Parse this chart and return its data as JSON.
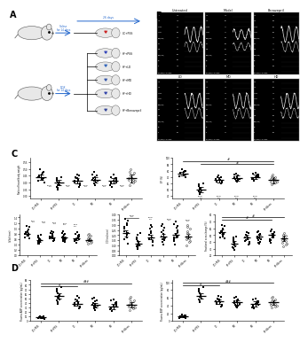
{
  "group_labels_short": [
    "UC+PSS",
    "HF+PSS",
    "LD",
    "MD",
    "HD",
    "HF+Bena"
  ],
  "ratio_hw_bw": {
    "means": [
      0.44,
      0.4,
      0.41,
      0.42,
      0.41,
      0.43
    ],
    "sems": [
      0.02,
      0.02,
      0.02,
      0.02,
      0.02,
      0.03
    ],
    "scatter": [
      [
        0.5,
        0.48,
        0.47,
        0.46,
        0.45,
        0.44,
        0.44,
        0.43,
        0.43,
        0.42,
        0.41,
        0.4
      ],
      [
        0.44,
        0.43,
        0.42,
        0.41,
        0.4,
        0.4,
        0.39,
        0.38,
        0.38,
        0.37,
        0.36,
        0.35
      ],
      [
        0.46,
        0.45,
        0.44,
        0.43,
        0.42,
        0.41,
        0.41,
        0.4,
        0.4,
        0.39,
        0.38,
        0.37
      ],
      [
        0.48,
        0.46,
        0.45,
        0.44,
        0.43,
        0.42,
        0.42,
        0.41,
        0.41,
        0.4,
        0.39,
        0.38
      ],
      [
        0.46,
        0.44,
        0.43,
        0.43,
        0.42,
        0.41,
        0.41,
        0.4,
        0.4,
        0.39,
        0.38,
        0.37
      ],
      [
        0.5,
        0.48,
        0.47,
        0.46,
        0.45,
        0.44,
        0.43,
        0.42,
        0.42,
        0.41,
        0.4,
        0.38
      ]
    ],
    "ylabel": "Ratio of heart/body weight",
    "ylim": [
      0.28,
      0.58
    ]
  },
  "ef": {
    "means": [
      75,
      50,
      65,
      68,
      70,
      65
    ],
    "sems": [
      3,
      4,
      4,
      4,
      4,
      5
    ],
    "scatter": [
      [
        82,
        80,
        79,
        78,
        77,
        76,
        75,
        74,
        73,
        72,
        71,
        69
      ],
      [
        60,
        58,
        57,
        55,
        53,
        52,
        50,
        49,
        48,
        47,
        45,
        43
      ],
      [
        72,
        70,
        69,
        68,
        67,
        66,
        65,
        64,
        63,
        62,
        61,
        59
      ],
      [
        75,
        73,
        72,
        71,
        70,
        69,
        68,
        67,
        66,
        65,
        64,
        62
      ],
      [
        77,
        75,
        74,
        73,
        72,
        71,
        70,
        69,
        68,
        67,
        66,
        64
      ],
      [
        73,
        71,
        70,
        69,
        68,
        67,
        66,
        65,
        63,
        62,
        61,
        58
      ]
    ],
    "ylabel": "EF (%)",
    "ylim": [
      35,
      100
    ]
  },
  "ivsd": {
    "means": [
      0.8,
      0.55,
      0.68,
      0.65,
      0.63,
      0.58
    ],
    "sems": [
      0.06,
      0.05,
      0.05,
      0.05,
      0.05,
      0.06
    ],
    "scatter": [
      [
        1.1,
        1.05,
        0.95,
        0.9,
        0.85,
        0.82,
        0.8,
        0.78,
        0.75,
        0.72,
        0.68,
        0.62
      ],
      [
        0.75,
        0.72,
        0.68,
        0.65,
        0.62,
        0.59,
        0.56,
        0.53,
        0.5,
        0.47,
        0.45,
        0.42
      ],
      [
        0.9,
        0.85,
        0.82,
        0.78,
        0.74,
        0.7,
        0.68,
        0.65,
        0.62,
        0.6,
        0.57,
        0.52
      ],
      [
        0.88,
        0.83,
        0.79,
        0.75,
        0.71,
        0.68,
        0.65,
        0.62,
        0.59,
        0.57,
        0.54,
        0.49
      ],
      [
        0.85,
        0.8,
        0.77,
        0.73,
        0.69,
        0.66,
        0.63,
        0.6,
        0.57,
        0.55,
        0.52,
        0.47
      ],
      [
        0.8,
        0.76,
        0.72,
        0.68,
        0.64,
        0.61,
        0.58,
        0.55,
        0.52,
        0.5,
        0.47,
        0.42
      ]
    ],
    "ylabel": "IVSd (mm)",
    "ylim": [
      0.0,
      1.5
    ]
  },
  "co": {
    "means": [
      0.22,
      0.12,
      0.18,
      0.19,
      0.2,
      0.19
    ],
    "sems": [
      0.03,
      0.02,
      0.02,
      0.02,
      0.02,
      0.02
    ],
    "scatter": [
      [
        0.36,
        0.34,
        0.32,
        0.3,
        0.28,
        0.26,
        0.24,
        0.22,
        0.2,
        0.18,
        0.16,
        0.12
      ],
      [
        0.22,
        0.2,
        0.18,
        0.16,
        0.14,
        0.13,
        0.12,
        0.11,
        0.1,
        0.09,
        0.08,
        0.06
      ],
      [
        0.3,
        0.28,
        0.26,
        0.24,
        0.22,
        0.2,
        0.18,
        0.17,
        0.16,
        0.14,
        0.13,
        0.1
      ],
      [
        0.31,
        0.29,
        0.27,
        0.25,
        0.23,
        0.21,
        0.19,
        0.18,
        0.16,
        0.15,
        0.13,
        0.11
      ],
      [
        0.33,
        0.31,
        0.29,
        0.27,
        0.25,
        0.23,
        0.21,
        0.19,
        0.18,
        0.16,
        0.14,
        0.11
      ],
      [
        0.3,
        0.28,
        0.26,
        0.24,
        0.22,
        0.21,
        0.19,
        0.17,
        0.16,
        0.14,
        0.13,
        0.1
      ]
    ],
    "ylabel": "CO (mL/min)",
    "ylim": [
      0.0,
      0.4
    ]
  },
  "fractional_area": {
    "means": [
      55,
      38,
      47,
      48,
      50,
      45
    ],
    "sems": [
      3,
      3,
      3,
      3,
      3,
      4
    ],
    "scatter": [
      [
        65,
        63,
        60,
        58,
        56,
        55,
        53,
        52,
        50,
        48,
        47,
        45
      ],
      [
        48,
        46,
        44,
        42,
        40,
        39,
        37,
        36,
        34,
        32,
        31,
        28
      ],
      [
        55,
        53,
        51,
        49,
        47,
        46,
        44,
        43,
        41,
        40,
        38,
        36
      ],
      [
        56,
        54,
        52,
        50,
        48,
        47,
        45,
        44,
        42,
        40,
        39,
        37
      ],
      [
        58,
        56,
        54,
        52,
        50,
        49,
        47,
        46,
        44,
        42,
        41,
        39
      ],
      [
        53,
        51,
        49,
        47,
        45,
        44,
        42,
        41,
        39,
        38,
        36,
        34
      ]
    ],
    "ylabel": "Fractional area change (%)",
    "ylim": [
      20,
      80
    ]
  },
  "plasma_anp": {
    "means": [
      8,
      55,
      38,
      35,
      32,
      36
    ],
    "sems": [
      1,
      6,
      5,
      5,
      5,
      5
    ],
    "scatter": [
      [
        11,
        10,
        9,
        9,
        8,
        8,
        7,
        7,
        7,
        6,
        6,
        5
      ],
      [
        75,
        72,
        68,
        65,
        62,
        58,
        55,
        52,
        48,
        45,
        42,
        38
      ],
      [
        55,
        52,
        48,
        45,
        42,
        40,
        38,
        36,
        34,
        32,
        30,
        28
      ],
      [
        52,
        50,
        46,
        43,
        40,
        38,
        36,
        34,
        32,
        30,
        28,
        25
      ],
      [
        48,
        46,
        42,
        40,
        38,
        36,
        34,
        32,
        30,
        28,
        26,
        23
      ],
      [
        53,
        50,
        46,
        43,
        40,
        38,
        36,
        34,
        32,
        30,
        28,
        25
      ]
    ],
    "ylabel": "Plasma ANP concentration (pg/mL)",
    "ylim": [
      0,
      90
    ]
  },
  "plasma_bnp": {
    "means": [
      12,
      65,
      50,
      48,
      44,
      48
    ],
    "sems": [
      2,
      7,
      6,
      6,
      6,
      6
    ],
    "scatter": [
      [
        16,
        15,
        14,
        13,
        12,
        11,
        10,
        10,
        9,
        9,
        8,
        7
      ],
      [
        88,
        84,
        80,
        76,
        72,
        68,
        65,
        62,
        58,
        55,
        52,
        48
      ],
      [
        65,
        62,
        58,
        55,
        52,
        50,
        48,
        46,
        44,
        42,
        40,
        38
      ],
      [
        62,
        60,
        56,
        53,
        50,
        48,
        46,
        44,
        42,
        40,
        38,
        35
      ],
      [
        58,
        56,
        52,
        50,
        48,
        46,
        44,
        42,
        40,
        38,
        36,
        33
      ],
      [
        63,
        60,
        56,
        53,
        50,
        48,
        46,
        44,
        42,
        40,
        38,
        35
      ]
    ],
    "ylabel": "Plasma BNP concentration (pg/mL)",
    "ylim": [
      0,
      105
    ]
  },
  "bg_color": "#ffffff",
  "echo_params_row1": [
    "IVSs",
    "IVSd",
    "LVPWd",
    "LVPWs",
    "SIVS(Freq)",
    "EF%",
    "FS%",
    "BWT(Freq)",
    "E/A(ratio)",
    "HR"
  ],
  "echo_params_row2": [
    "IVSs",
    "IVSd",
    "LVPWd",
    "LVPWs",
    "SIVS(Freq)",
    "EF%",
    "FS%",
    "BWT(Freq)",
    "E/A(ratio)",
    "HR"
  ],
  "echo_vals_r1": [
    [
      "0.07 cm",
      "0.08 cm",
      "0.17 cm",
      "0.18 cm",
      "1.18 Hz",
      "51.4%",
      "56.4 %",
      "159.4 %",
      "97.3 %",
      "1"
    ],
    [
      "0.12 cm",
      "0.09 cm",
      "0.16 cm",
      "0.13 cm",
      "0.81 Hz",
      "34.2%",
      "32.4 %",
      "38.5 %",
      "285.4 %",
      "1"
    ],
    [
      "0.10 cm",
      "0.09 cm",
      "0.17 cm",
      "0.14 cm",
      "0.80 Hz",
      "81.9%",
      "44.4 %",
      "252.4 %",
      "285.4 %",
      "1"
    ]
  ],
  "echo_vals_r2": [
    [
      "0.07 cm",
      "0.08 cm",
      "0.15 cm",
      "0.16 cm",
      "0.75 Hz",
      "47.5%",
      "47.4 %",
      "289.4 %",
      "285.4 %",
      "1"
    ],
    [
      "0.08 cm",
      "0.09 cm",
      "0.15 cm",
      "0.14 cm",
      "0.75 Hz",
      "47.5%",
      "47.4 %",
      "174.4 %",
      "285.4 %",
      "1"
    ],
    [
      "0.08 cm",
      "0.08 cm",
      "0.15 cm",
      "0.15 cm",
      "0.81 Hz",
      "60.4%",
      "27.4 %",
      "289.4 %",
      "285.4 %",
      "1"
    ]
  ]
}
